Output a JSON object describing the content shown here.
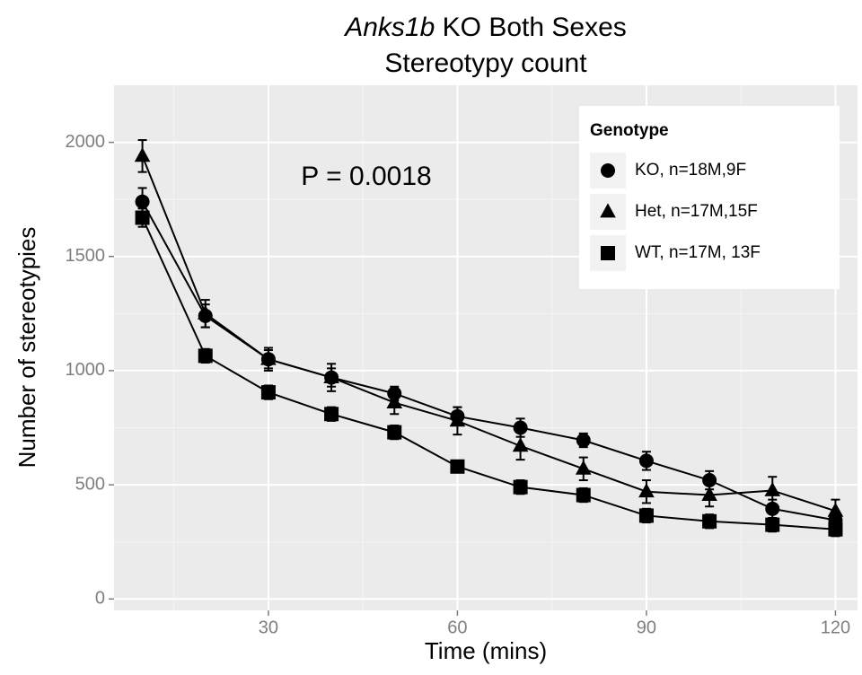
{
  "chart_data": {
    "type": "line",
    "title": [
      "Anks1b",
      "KO Both Sexes"
    ],
    "subtitle": "Stereotypy count",
    "x_label": "Time (mins)",
    "y_label": "Number of stereotypies",
    "annotation": "P = 0.0018",
    "legend_title": "Genotype",
    "legend_position": "top-right",
    "grid": true,
    "x": [
      10,
      20,
      30,
      40,
      50,
      60,
      70,
      80,
      90,
      100,
      110,
      120
    ],
    "xlim": [
      5.5,
      123.5
    ],
    "xticks": [
      30,
      60,
      90,
      120
    ],
    "ylim": [
      -50,
      2250
    ],
    "yticks": [
      0,
      500,
      1000,
      1500,
      2000
    ],
    "series": [
      {
        "name": "KO, n=18M,9F",
        "color": "#000000",
        "marker": "circle",
        "values": [
          1740,
          1240,
          1050,
          970,
          900,
          800,
          750,
          695,
          605,
          520,
          395,
          345
        ],
        "errors": [
          60,
          50,
          40,
          40,
          30,
          40,
          40,
          30,
          40,
          40,
          40,
          40
        ]
      },
      {
        "name": "Het, n=17M,15F",
        "color": "#000000",
        "marker": "triangle",
        "values": [
          1940,
          1250,
          1050,
          970,
          860,
          780,
          670,
          570,
          470,
          455,
          475,
          385
        ],
        "errors": [
          70,
          60,
          50,
          60,
          50,
          60,
          60,
          50,
          50,
          50,
          60,
          50
        ]
      },
      {
        "name": "WT, n=17M, 13F",
        "color": "#000000",
        "marker": "square",
        "values": [
          1670,
          1065,
          905,
          810,
          730,
          580,
          490,
          455,
          365,
          340,
          325,
          305
        ],
        "errors": [
          40,
          30,
          30,
          30,
          30,
          20,
          30,
          30,
          30,
          30,
          30,
          30
        ]
      }
    ]
  }
}
